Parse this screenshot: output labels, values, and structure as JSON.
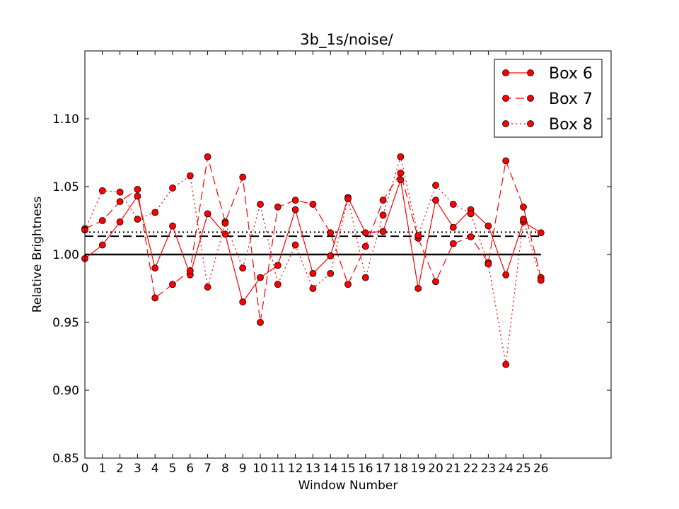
{
  "chart_data": {
    "type": "line",
    "title": "3b_1s/noise/",
    "xlabel": "Window Number",
    "ylabel": "Relative Brightness",
    "xlim": [
      0,
      30
    ],
    "ylim": [
      0.85,
      1.15
    ],
    "xticks": [
      0,
      1,
      2,
      3,
      4,
      5,
      6,
      7,
      8,
      9,
      10,
      11,
      12,
      13,
      14,
      15,
      16,
      17,
      18,
      19,
      20,
      21,
      22,
      23,
      24,
      25,
      26
    ],
    "yticks": [
      0.85,
      0.9,
      0.95,
      1.0,
      1.05,
      1.1
    ],
    "ytick_labels": [
      "0.85",
      "0.90",
      "0.95",
      "1.00",
      "1.05",
      "1.10"
    ],
    "grid": false,
    "legend_position": "top-right",
    "x": [
      0,
      1,
      2,
      3,
      4,
      5,
      6,
      7,
      8,
      9,
      10,
      11,
      12,
      13,
      14,
      15,
      16,
      17,
      18,
      19,
      20,
      21,
      22,
      23,
      24,
      25,
      26
    ],
    "series": [
      {
        "name": "Box 6",
        "linestyle": "solid",
        "color": "#ff0000",
        "values": [
          0.997,
          1.007,
          1.024,
          1.043,
          0.99,
          1.021,
          0.985,
          1.03,
          1.015,
          0.965,
          0.983,
          0.992,
          1.033,
          0.986,
          0.999,
          1.042,
          1.016,
          1.017,
          1.055,
          0.975,
          1.04,
          1.02,
          1.033,
          1.021,
          0.985,
          1.024,
          1.016
        ]
      },
      {
        "name": "Box 7",
        "linestyle": "dashed",
        "color": "#ff0000",
        "values": [
          1.019,
          1.025,
          1.039,
          1.048,
          0.968,
          0.978,
          0.988,
          1.072,
          1.024,
          1.057,
          0.95,
          1.035,
          1.04,
          1.037,
          1.016,
          0.978,
          1.006,
          1.04,
          1.06,
          1.012,
          0.98,
          1.008,
          1.013,
          0.994,
          1.069,
          1.035,
          0.983
        ]
      },
      {
        "name": "Box 8",
        "linestyle": "dotted",
        "color": "#ff0000",
        "values": [
          1.018,
          1.047,
          1.046,
          1.026,
          1.031,
          1.049,
          1.058,
          0.976,
          1.023,
          0.99,
          1.037,
          0.978,
          1.007,
          0.975,
          0.986,
          1.041,
          0.983,
          1.029,
          1.072,
          1.014,
          1.051,
          1.037,
          1.03,
          0.993,
          0.919,
          1.026,
          0.981
        ]
      }
    ],
    "reference_lines": [
      {
        "y": 1.0,
        "linestyle": "solid",
        "color": "#000000"
      },
      {
        "y": 1.0135,
        "linestyle": "dashed",
        "color": "#000000"
      },
      {
        "y": 1.0165,
        "linestyle": "dotted",
        "color": "#000000"
      }
    ]
  }
}
